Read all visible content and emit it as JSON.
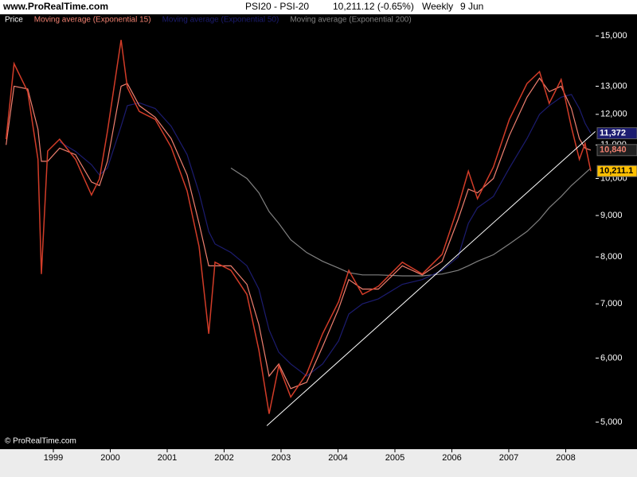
{
  "header": {
    "site": "www.ProRealTime.com",
    "instrument": "PSI20 - PSI-20",
    "quote": "10,211.12 (-0.65%)",
    "period": "Weekly",
    "date": "9 Jun"
  },
  "footer": "© ProRealTime.com",
  "chart_data": {
    "type": "line",
    "log_scale": true,
    "background": "#000000",
    "x": [
      1998.17,
      1998.31,
      1998.55,
      1998.73,
      1998.79,
      1998.9,
      1999.11,
      1999.39,
      1999.67,
      1999.81,
      1999.95,
      2000.19,
      2000.3,
      2000.51,
      2000.79,
      2001.07,
      2001.35,
      2001.56,
      2001.73,
      2001.84,
      2002.12,
      2002.4,
      2002.61,
      2002.79,
      2002.96,
      2003.17,
      2003.45,
      2003.73,
      2004.01,
      2004.19,
      2004.43,
      2004.71,
      2005.13,
      2005.48,
      2005.83,
      2006.11,
      2006.29,
      2006.45,
      2006.73,
      2007.01,
      2007.32,
      2007.54,
      2007.71,
      2007.92,
      2008.1,
      2008.24,
      2008.34,
      2008.44
    ],
    "xlim": [
      1998.063,
      2008.525
    ],
    "xticks": [
      1999,
      2000,
      2001,
      2002,
      2003,
      2004,
      2005,
      2006,
      2007,
      2008
    ],
    "ylim": [
      4630,
      15950
    ],
    "yticks": [
      {
        "value": 5000,
        "label": "5,000"
      },
      {
        "value": 6000,
        "label": "6,000"
      },
      {
        "value": 7000,
        "label": "7,000"
      },
      {
        "value": 8000,
        "label": "8,000"
      },
      {
        "value": 9000,
        "label": "9,000"
      },
      {
        "value": 10000,
        "label": "10,000"
      },
      {
        "value": 11000,
        "label": "11,000"
      },
      {
        "value": 12000,
        "label": "12,000"
      },
      {
        "value": 13000,
        "label": "13,000"
      },
      {
        "value": 15000,
        "label": "15,000"
      }
    ],
    "series": [
      {
        "name": "Price",
        "color": "#d23c28",
        "last_label": "10,211.1",
        "values": [
          11180,
          13860,
          12800,
          10560,
          7620,
          10810,
          11180,
          10560,
          9540,
          9990,
          11430,
          14830,
          12950,
          12100,
          11830,
          10930,
          9650,
          8240,
          6430,
          7880,
          7700,
          7190,
          6140,
          5120,
          5870,
          5370,
          5740,
          6430,
          7040,
          7700,
          7190,
          7360,
          7880,
          7620,
          8060,
          9230,
          10210,
          9440,
          10330,
          11830,
          13100,
          13550,
          12380,
          13250,
          11570,
          10560,
          11050,
          10211.12
        ]
      },
      {
        "name": "Moving average (Exponential 15)",
        "color": "#f08070",
        "last_label": "10,840",
        "values": [
          11000,
          13000,
          12900,
          11500,
          10500,
          10500,
          10900,
          10700,
          9900,
          9800,
          10500,
          13000,
          13100,
          12300,
          11900,
          11200,
          10100,
          8800,
          7800,
          7800,
          7800,
          7400,
          6600,
          5700,
          5900,
          5500,
          5600,
          6200,
          6900,
          7500,
          7300,
          7300,
          7800,
          7600,
          7900,
          8900,
          9700,
          9600,
          10000,
          11300,
          12600,
          13300,
          12800,
          13000,
          12200,
          11200,
          10900,
          10840
        ]
      },
      {
        "name": "Moving average (Exponential 50)",
        "color": "#1c1c70",
        "last_label": "11,372",
        "values": [
          null,
          null,
          null,
          null,
          null,
          null,
          11100,
          10800,
          10400,
          10100,
          10300,
          11600,
          12300,
          12400,
          12200,
          11600,
          10700,
          9600,
          8600,
          8300,
          8100,
          7800,
          7300,
          6500,
          6100,
          5900,
          5700,
          5900,
          6300,
          6800,
          7000,
          7100,
          7400,
          7500,
          7700,
          8000,
          8800,
          9200,
          9500,
          10300,
          11200,
          12000,
          12300,
          12600,
          12700,
          12200,
          11700,
          11372
        ]
      },
      {
        "name": "Moving average (Exponential 200)",
        "color": "#808080",
        "values": [
          null,
          null,
          null,
          null,
          null,
          null,
          null,
          null,
          null,
          null,
          null,
          null,
          null,
          null,
          null,
          null,
          null,
          null,
          null,
          null,
          10300,
          10000,
          9600,
          9100,
          8800,
          8400,
          8100,
          7900,
          7750,
          7650,
          7600,
          7600,
          7580,
          7580,
          7620,
          7700,
          7800,
          7900,
          8050,
          8300,
          8600,
          8900,
          9200,
          9500,
          9800,
          10000,
          10150,
          10300
        ]
      }
    ],
    "trendline": {
      "color": "#ffffff",
      "x": [
        2002.75,
        2008.52
      ],
      "y": [
        4950,
        11430
      ]
    }
  }
}
